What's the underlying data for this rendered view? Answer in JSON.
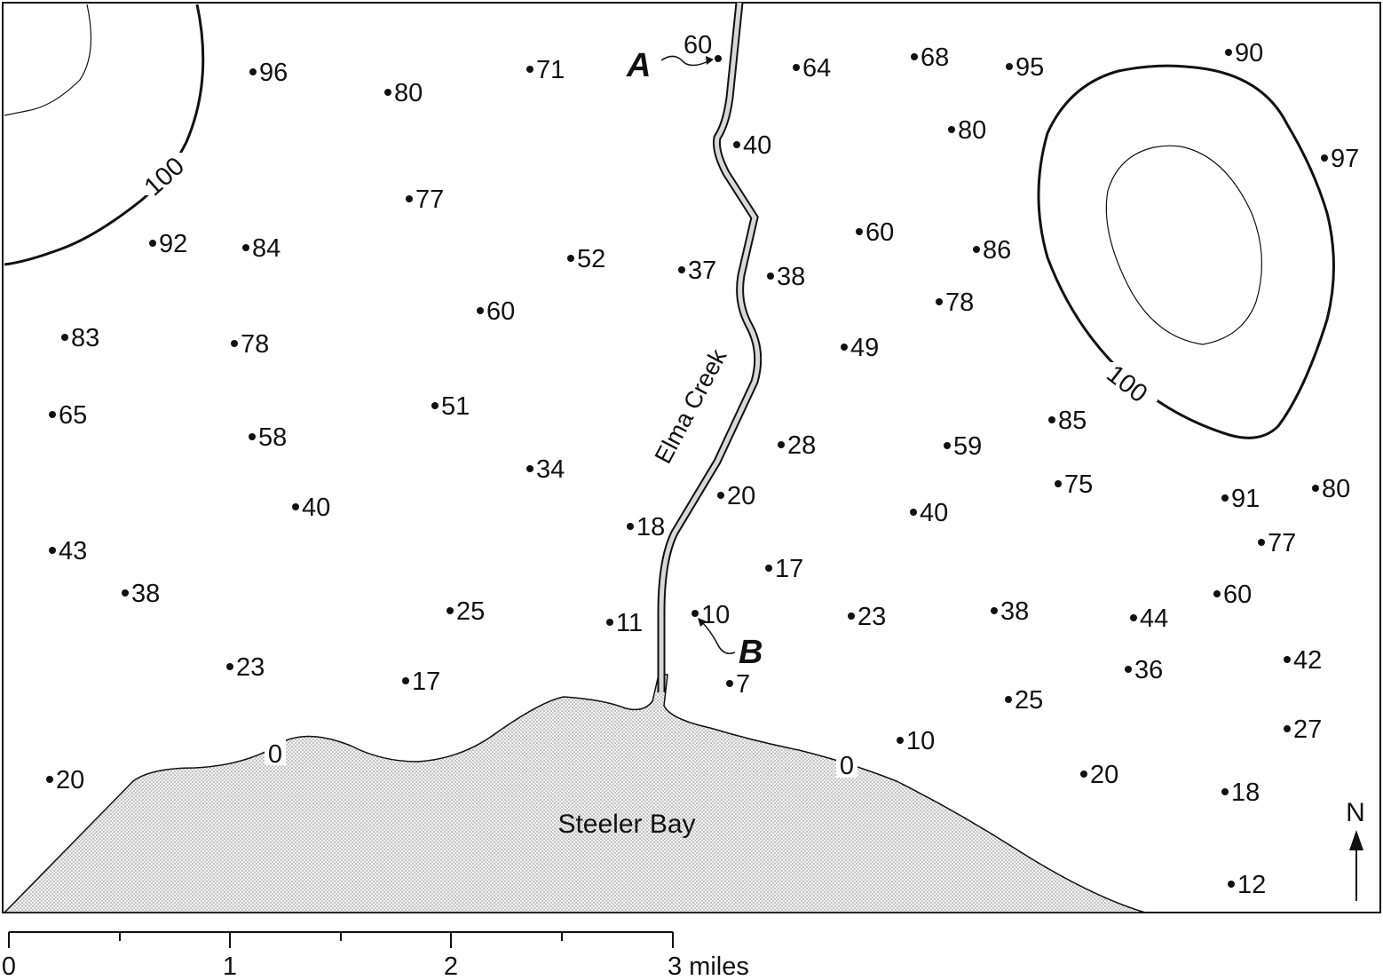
{
  "map": {
    "water_label": "Steeler Bay",
    "creek_label": "Elma Creek",
    "north_label": "N",
    "contour_labels": {
      "nw_100": "100",
      "ne_100": "100",
      "shore_0_left": "0",
      "shore_0_right": "0"
    },
    "points": {
      "a": {
        "label": "A",
        "value": "60"
      },
      "b": {
        "label": "B",
        "value": "10"
      }
    },
    "scale": {
      "ticks": [
        "0",
        "1",
        "2",
        "3 miles"
      ]
    },
    "elevations": [
      "96",
      "80",
      "71",
      "64",
      "68",
      "95",
      "90",
      "40",
      "80",
      "97",
      "77",
      "92",
      "84",
      "52",
      "37",
      "38",
      "60",
      "86",
      "60",
      "78",
      "83",
      "78",
      "49",
      "65",
      "51",
      "58",
      "28",
      "59",
      "85",
      "34",
      "75",
      "40",
      "20",
      "40",
      "91",
      "80",
      "18",
      "77",
      "43",
      "17",
      "38",
      "25",
      "11",
      "23",
      "38",
      "44",
      "60",
      "23",
      "42",
      "17",
      "7",
      "36",
      "25",
      "27",
      "10",
      "20",
      "20",
      "18",
      "12"
    ]
  }
}
